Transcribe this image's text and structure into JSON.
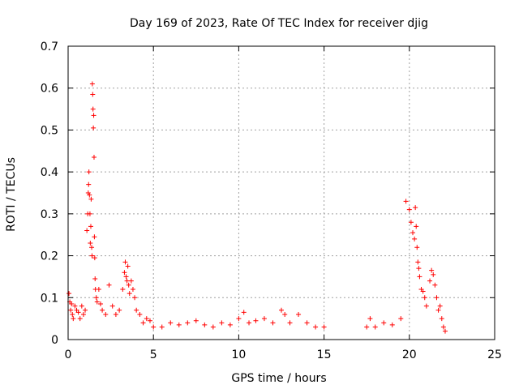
{
  "chart_data": {
    "type": "scatter",
    "title": "Day 169 of 2023, Rate Of TEC Index for receiver djig",
    "xlabel": "GPS time / hours",
    "ylabel": "ROTI / TECUs",
    "xlim": [
      0,
      25
    ],
    "ylim": [
      0,
      0.7
    ],
    "x_ticks": [
      "0",
      "5",
      "10",
      "15",
      "20",
      "25"
    ],
    "y_ticks": [
      "0",
      "0.1",
      "0.2",
      "0.3",
      "0.4",
      "0.5",
      "0.6",
      "0.7"
    ],
    "grid": true,
    "marker": "+",
    "color": "#ff0000",
    "series": [
      {
        "points": [
          [
            0.05,
            0.11
          ],
          [
            0.1,
            0.09
          ],
          [
            0.15,
            0.07
          ],
          [
            0.2,
            0.085
          ],
          [
            0.25,
            0.06
          ],
          [
            0.3,
            0.05
          ],
          [
            0.4,
            0.08
          ],
          [
            0.5,
            0.07
          ],
          [
            0.6,
            0.065
          ],
          [
            0.7,
            0.05
          ],
          [
            0.8,
            0.08
          ],
          [
            0.9,
            0.06
          ],
          [
            1.0,
            0.07
          ],
          [
            1.1,
            0.26
          ],
          [
            1.15,
            0.3
          ],
          [
            1.18,
            0.35
          ],
          [
            1.2,
            0.37
          ],
          [
            1.22,
            0.4
          ],
          [
            1.25,
            0.345
          ],
          [
            1.28,
            0.3
          ],
          [
            1.3,
            0.23
          ],
          [
            1.33,
            0.27
          ],
          [
            1.35,
            0.335
          ],
          [
            1.38,
            0.22
          ],
          [
            1.4,
            0.2
          ],
          [
            1.42,
            0.61
          ],
          [
            1.44,
            0.585
          ],
          [
            1.46,
            0.55
          ],
          [
            1.48,
            0.505
          ],
          [
            1.5,
            0.535
          ],
          [
            1.52,
            0.435
          ],
          [
            1.54,
            0.245
          ],
          [
            1.56,
            0.195
          ],
          [
            1.58,
            0.145
          ],
          [
            1.6,
            0.12
          ],
          [
            1.65,
            0.1
          ],
          [
            1.7,
            0.09
          ],
          [
            1.8,
            0.12
          ],
          [
            1.9,
            0.085
          ],
          [
            2.0,
            0.07
          ],
          [
            2.2,
            0.06
          ],
          [
            2.4,
            0.13
          ],
          [
            2.6,
            0.08
          ],
          [
            2.8,
            0.06
          ],
          [
            3.0,
            0.07
          ],
          [
            3.2,
            0.12
          ],
          [
            3.3,
            0.16
          ],
          [
            3.35,
            0.185
          ],
          [
            3.4,
            0.15
          ],
          [
            3.45,
            0.14
          ],
          [
            3.5,
            0.175
          ],
          [
            3.55,
            0.13
          ],
          [
            3.6,
            0.11
          ],
          [
            3.7,
            0.14
          ],
          [
            3.8,
            0.12
          ],
          [
            3.9,
            0.1
          ],
          [
            4.0,
            0.07
          ],
          [
            4.2,
            0.06
          ],
          [
            4.4,
            0.04
          ],
          [
            4.6,
            0.05
          ],
          [
            4.8,
            0.045
          ],
          [
            5.0,
            0.03
          ],
          [
            5.5,
            0.03
          ],
          [
            6.0,
            0.04
          ],
          [
            6.5,
            0.035
          ],
          [
            7.0,
            0.04
          ],
          [
            7.5,
            0.045
          ],
          [
            8.0,
            0.035
          ],
          [
            8.5,
            0.03
          ],
          [
            9.0,
            0.04
          ],
          [
            9.5,
            0.035
          ],
          [
            10.0,
            0.05
          ],
          [
            10.3,
            0.065
          ],
          [
            10.6,
            0.04
          ],
          [
            11.0,
            0.045
          ],
          [
            11.5,
            0.05
          ],
          [
            12.0,
            0.04
          ],
          [
            12.5,
            0.07
          ],
          [
            12.7,
            0.06
          ],
          [
            13.0,
            0.04
          ],
          [
            13.5,
            0.06
          ],
          [
            14.0,
            0.04
          ],
          [
            14.5,
            0.03
          ],
          [
            15.0,
            0.03
          ],
          [
            17.5,
            0.03
          ],
          [
            17.7,
            0.05
          ],
          [
            18.0,
            0.03
          ],
          [
            18.5,
            0.04
          ],
          [
            19.0,
            0.035
          ],
          [
            19.5,
            0.05
          ],
          [
            19.8,
            0.33
          ],
          [
            20.0,
            0.31
          ],
          [
            20.1,
            0.28
          ],
          [
            20.2,
            0.255
          ],
          [
            20.3,
            0.24
          ],
          [
            20.35,
            0.315
          ],
          [
            20.4,
            0.27
          ],
          [
            20.45,
            0.22
          ],
          [
            20.5,
            0.185
          ],
          [
            20.55,
            0.17
          ],
          [
            20.6,
            0.15
          ],
          [
            20.7,
            0.12
          ],
          [
            20.8,
            0.115
          ],
          [
            20.9,
            0.1
          ],
          [
            21.0,
            0.08
          ],
          [
            21.2,
            0.14
          ],
          [
            21.3,
            0.165
          ],
          [
            21.4,
            0.155
          ],
          [
            21.5,
            0.13
          ],
          [
            21.6,
            0.1
          ],
          [
            21.7,
            0.07
          ],
          [
            21.8,
            0.08
          ],
          [
            21.9,
            0.05
          ],
          [
            22.0,
            0.03
          ],
          [
            22.1,
            0.02
          ]
        ]
      }
    ]
  }
}
